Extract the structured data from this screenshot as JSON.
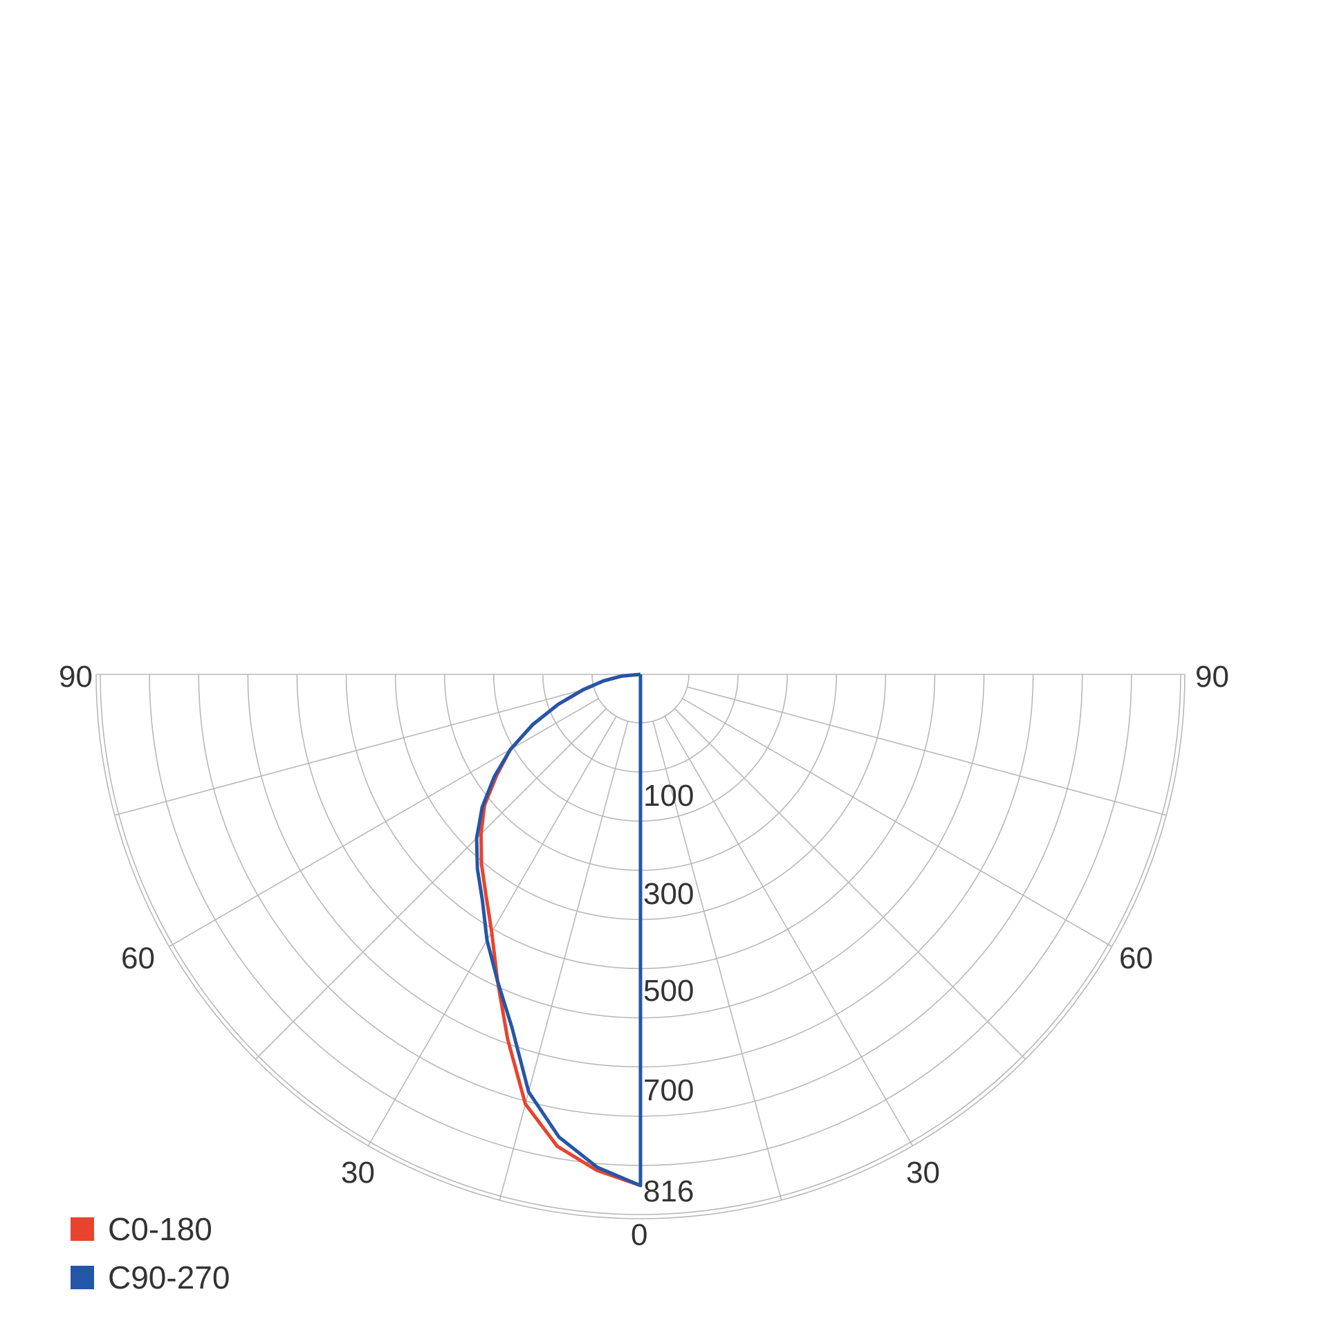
{
  "chart_data": {
    "type": "polar",
    "angle_labels": {
      "left": [
        "90",
        "60",
        "30"
      ],
      "right": [
        "90",
        "60",
        "30"
      ],
      "bottom": "0"
    },
    "radial_tick_labels": [
      "100",
      "300",
      "500",
      "700",
      "816"
    ],
    "radial_max": 816,
    "angle_range_deg": [
      -90,
      90
    ],
    "angle_grid_step_deg": 15,
    "ring_count": 11,
    "grid": true,
    "legend_position": "bottom-left",
    "series": [
      {
        "name": "C0-180",
        "color": "#e8432e",
        "angles": [
          0,
          5,
          10,
          15,
          20,
          25,
          30,
          35,
          40,
          45,
          50,
          55,
          60,
          65,
          70,
          75,
          80,
          85,
          90
        ],
        "values": [
          816,
          795,
          765,
          710,
          620,
          540,
          475,
          430,
          395,
          360,
          325,
          280,
          240,
          190,
          140,
          95,
          60,
          30,
          0
        ]
      },
      {
        "name": "C90-270",
        "color": "#2456a8",
        "angles": [
          0,
          5,
          10,
          15,
          20,
          25,
          30,
          35,
          40,
          45,
          50,
          55,
          60,
          65,
          70,
          75,
          80,
          85,
          90
        ],
        "values": [
          816,
          790,
          750,
          690,
          600,
          540,
          490,
          440,
          405,
          370,
          330,
          285,
          240,
          190,
          140,
          95,
          60,
          30,
          0
        ]
      }
    ]
  }
}
